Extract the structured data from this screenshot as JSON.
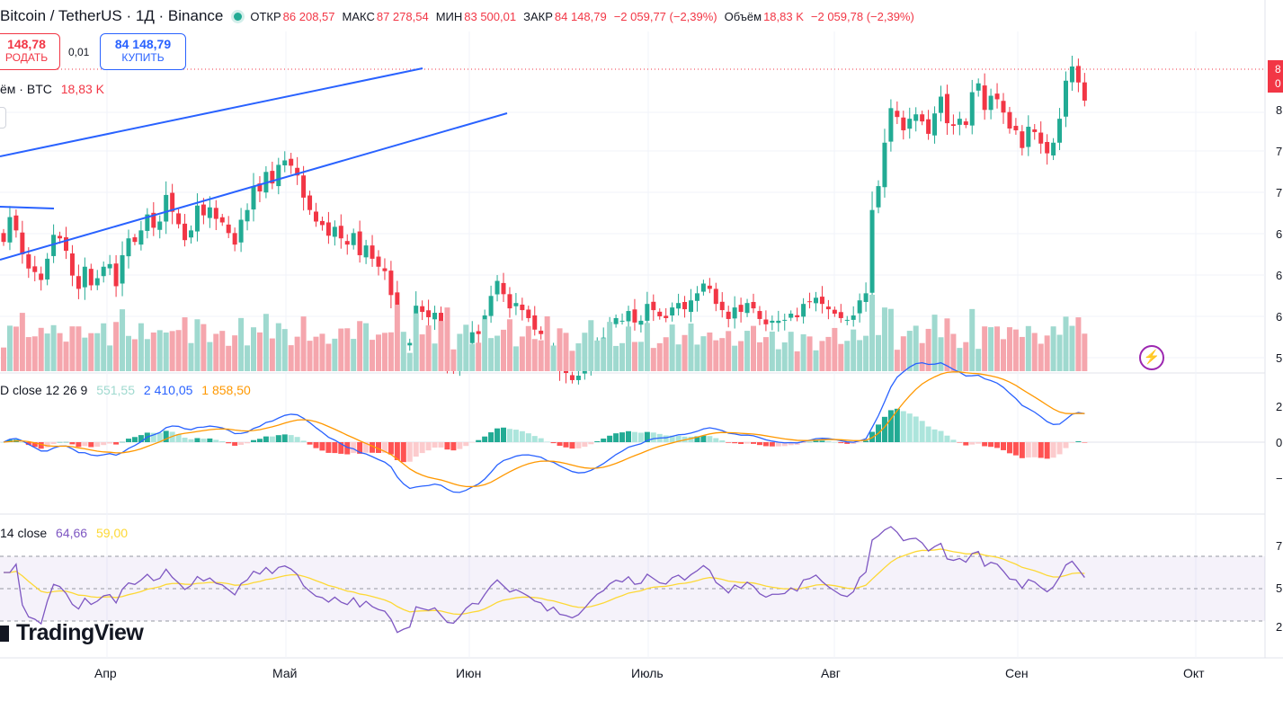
{
  "header": {
    "symbol": "Bitcoin / TetherUS · 1Д · Binance",
    "open_label": "ОТКР",
    "open_value": "86 208,57",
    "high_label": "МАКС",
    "high_value": "87 278,54",
    "low_label": "МИН",
    "low_value": "83 500,01",
    "close_label": "ЗАКР",
    "close_value": "84 148,79",
    "change": "−2 059,77 (−2,39%)",
    "volume_label": "Объём",
    "volume_value": "18,83 K",
    "volume_change": "−2 059,78 (−2,39%)"
  },
  "trade": {
    "sell_price": "148,78",
    "sell_label": "РОДАТЬ",
    "spread": "0,01",
    "buy_price": "84 148,79",
    "buy_label": "КУПИТЬ"
  },
  "volume_legend": {
    "name": "ём · BTC",
    "value": "18,83 K"
  },
  "macd_legend": {
    "name": "D close 12 26 9",
    "hist": "551,55",
    "macd": "2 410,05",
    "signal": "1 858,50"
  },
  "rsi_legend": {
    "name": "14 close",
    "rsi": "64,66",
    "ma": "59,00"
  },
  "branding": {
    "logo_text": "TradingView"
  },
  "x_axis": {
    "labels": [
      "Апр",
      "Май",
      "Июн",
      "Июль",
      "Авг",
      "Сен",
      "Окт"
    ]
  },
  "right_axis": {
    "price_ticks": [
      "8",
      "7",
      "7",
      "6",
      "6",
      "6",
      "5"
    ],
    "price_badge": [
      "8",
      "0"
    ],
    "macd_ticks": [
      "2",
      "0",
      "−"
    ],
    "rsi_ticks": [
      "7",
      "5",
      "2"
    ]
  },
  "colors": {
    "up": "#22ab94",
    "down": "#f23645",
    "macd": "#2962ff",
    "signal": "#ff9800",
    "rsi": "#7e57c2",
    "rsi_ma": "#fdd835",
    "trendline": "#2962ff"
  },
  "chart_data": {
    "type": "candlestick",
    "timeframe": "1D",
    "x_range": [
      "2024-03-13",
      "2024-09-26"
    ],
    "y_range": [
      50000,
      88000
    ],
    "last_candle": {
      "open": 86208.57,
      "high": 87278.54,
      "low": 83500.01,
      "close": 84148.79,
      "volume": "18,83 K"
    },
    "closes": [
      68200,
      71000,
      69500,
      66800,
      65200,
      64800,
      63900,
      66300,
      69000,
      68600,
      67200,
      64400,
      62900,
      65400,
      63300,
      64100,
      65400,
      65700,
      63200,
      66700,
      68600,
      68200,
      69500,
      71300,
      69800,
      70500,
      73500,
      71600,
      70200,
      68400,
      69500,
      72300,
      71200,
      72100,
      70800,
      70400,
      69200,
      67900,
      70700,
      71800,
      74500,
      73900,
      76100,
      74800,
      76900,
      77400,
      76800,
      75700,
      73200,
      71800,
      70500,
      70100,
      68900,
      69900,
      68600,
      67900,
      69200,
      66700,
      67800,
      66300,
      65400,
      64900,
      62200,
      55800,
      56400,
      56800,
      61000,
      60300,
      59700,
      60200,
      57500,
      54300,
      53900,
      55200,
      56900,
      58000,
      57800,
      59900,
      62100,
      63800,
      62300,
      60700,
      61300,
      60500,
      59600,
      58300,
      57800,
      55400,
      56100,
      53800,
      53400,
      52600,
      53100,
      54200,
      55500,
      56700,
      57400,
      58800,
      59600,
      59300,
      60400,
      59100,
      59300,
      61200,
      60500,
      59800,
      59600,
      60800,
      61300,
      60600,
      61600,
      62400,
      63500,
      62900,
      61200,
      60500,
      59500,
      60800,
      60300,
      61300,
      60700,
      59500,
      58900,
      59300,
      59300,
      59400,
      60100,
      59700,
      61200,
      61400,
      61900,
      61200,
      60600,
      60100,
      59600,
      59400,
      59900,
      61600,
      62400,
      71800,
      74500,
      79400,
      83300,
      82300,
      80800,
      82100,
      82600,
      81800,
      80400,
      82700,
      84600,
      81600,
      81300,
      82100,
      81400,
      85100,
      86100,
      83100,
      84700,
      84300,
      82800,
      81000,
      80800,
      78800,
      81200,
      80600,
      79300,
      78200,
      79400,
      82100,
      86400,
      88000,
      86200,
      84150
    ],
    "macd": {
      "hist": "551,55",
      "macd": "2 410,05",
      "signal": "1 858,50"
    },
    "rsi": {
      "value": "64,66",
      "ma": "59,00",
      "levels": [
        70,
        50,
        30
      ]
    }
  }
}
